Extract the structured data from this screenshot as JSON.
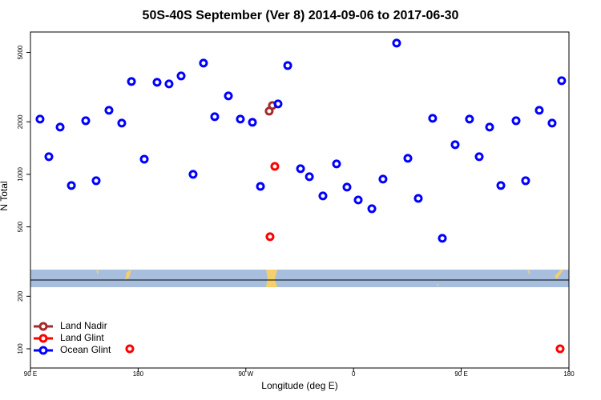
{
  "chart_data": {
    "type": "scatter",
    "title": "50S-40S September (Ver 8)   2014-09-06 to 2017-06-30",
    "x_label": "Longitude (deg E)",
    "y_label": "N Total",
    "log_y": true,
    "legend": "bottom-left",
    "xlim": [
      90,
      540
    ],
    "xticks": [
      {
        "value": 90,
        "label": "90 E"
      },
      {
        "value": 180,
        "label": "180"
      },
      {
        "value": 270,
        "label": "90 W"
      },
      {
        "value": 360,
        "label": "0"
      },
      {
        "value": 450,
        "label": "90 E"
      },
      {
        "value": 540,
        "label": "180"
      }
    ],
    "ylim": [
      77.6,
      6546
    ],
    "yticks": [
      100,
      200,
      500,
      1000,
      2000,
      5000
    ],
    "series": [
      {
        "name": "Land Nadir",
        "color": "#a52a2a",
        "x": [
          289.5,
          292.2
        ],
        "values": [
          2303,
          2480
        ]
      },
      {
        "name": "Land Glint",
        "color": "#ff0000",
        "x": [
          294.2,
          290.2,
          173.0,
          532.6
        ],
        "values": [
          1111,
          439,
          100,
          100
        ]
      },
      {
        "name": "Ocean Glint",
        "color": "#0000ff",
        "x": [
          98.0,
          105.4,
          114.8,
          124.2,
          136.2,
          144.9,
          155.6,
          166.3,
          174.4,
          185.1,
          195.8,
          205.8,
          215.9,
          225.9,
          234.6,
          244.0,
          255.4,
          265.4,
          275.5,
          282.2,
          296.9,
          305.0,
          315.7,
          323.1,
          334.4,
          345.8,
          354.5,
          363.9,
          375.3,
          384.6,
          396.0,
          405.4,
          414.1,
          426.1,
          434.2,
          444.9,
          456.9,
          465.0,
          473.7,
          483.1,
          495.8,
          503.8,
          515.2,
          525.9,
          533.9
        ],
        "values": [
          2073,
          1262,
          1865,
          863,
          2029,
          919,
          2328,
          1966,
          3405,
          1222,
          3370,
          3298,
          3665,
          1000,
          4343,
          2140,
          2815,
          2073,
          1988,
          853,
          2533,
          4204,
          1077,
          969,
          752,
          1148,
          845,
          713,
          635,
          939,
          5654,
          1236,
          728,
          2095,
          430,
          1479,
          2073,
          1262,
          1865,
          863,
          2029,
          919,
          2328,
          1966,
          3441
        ]
      }
    ]
  }
}
